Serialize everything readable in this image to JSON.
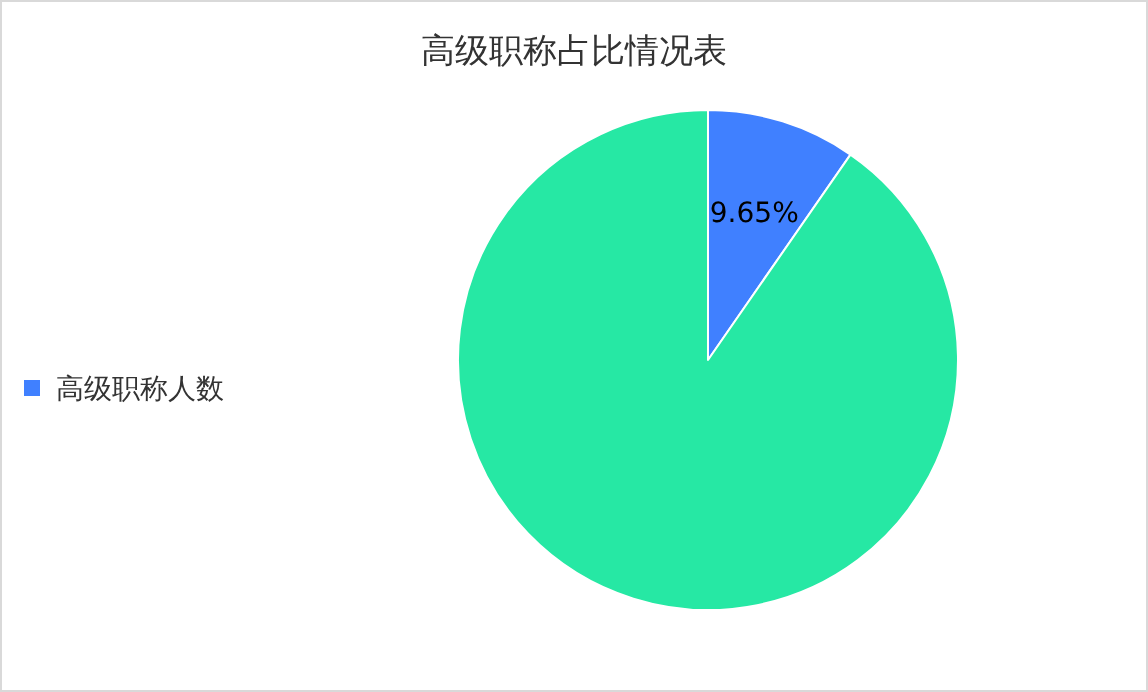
{
  "chart_data": {
    "type": "pie",
    "title": "高级职称占比情况表",
    "categories": [
      "高级职称人数",
      null
    ],
    "values": [
      9.65,
      90.35
    ],
    "colors": [
      "#4080ff",
      "#26e8a4"
    ],
    "value_labels": [
      "9.65%",
      null
    ],
    "legend": "left"
  }
}
